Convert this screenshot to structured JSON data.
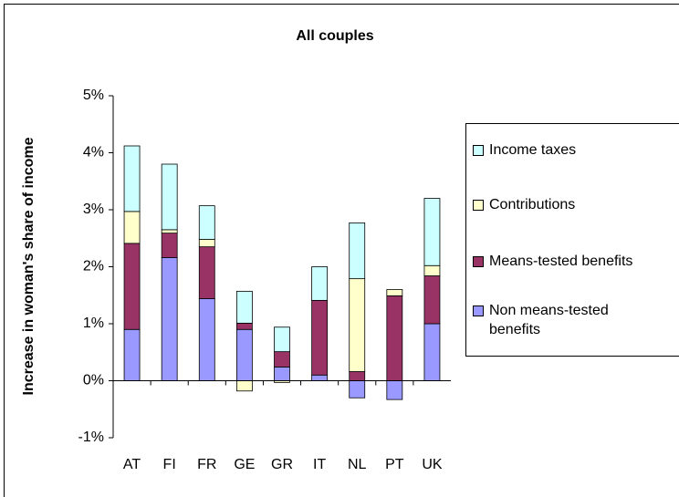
{
  "chart_data": {
    "type": "stacked_bar",
    "title": "All couples",
    "y_label": "Increase in woman's share of income",
    "categories": [
      "AT",
      "FI",
      "FR",
      "GE",
      "GR",
      "IT",
      "NL",
      "PT",
      "UK"
    ],
    "series": [
      {
        "name": "Non means-tested benefits",
        "color": "#9999ff",
        "values": [
          0.9,
          2.16,
          1.44,
          0.9,
          0.24,
          0.1,
          -0.3,
          -0.33,
          1.0
        ]
      },
      {
        "name": "Means-tested benefits",
        "color": "#993366",
        "values": [
          1.51,
          0.43,
          0.91,
          0.11,
          0.27,
          1.31,
          0.16,
          1.49,
          0.84
        ]
      },
      {
        "name": "Contributions",
        "color": "#ffffcc",
        "values": [
          0.56,
          0.06,
          0.13,
          -0.18,
          -0.03,
          0,
          1.63,
          0.11,
          0.18
        ]
      },
      {
        "name": "Income taxes",
        "color": "#ccffff",
        "values": [
          1.15,
          1.15,
          0.59,
          0.56,
          0.43,
          0.59,
          0.98,
          0,
          1.18
        ]
      }
    ],
    "ylim": [
      -1,
      5
    ],
    "yticks": [
      {
        "value": -1,
        "label": "-1%"
      },
      {
        "value": 0,
        "label": "0%"
      },
      {
        "value": 1,
        "label": "1%"
      },
      {
        "value": 2,
        "label": "2%"
      },
      {
        "value": 3,
        "label": "3%"
      },
      {
        "value": 4,
        "label": "4%"
      },
      {
        "value": 5,
        "label": "5%"
      }
    ],
    "grid": false,
    "legend": "right"
  }
}
